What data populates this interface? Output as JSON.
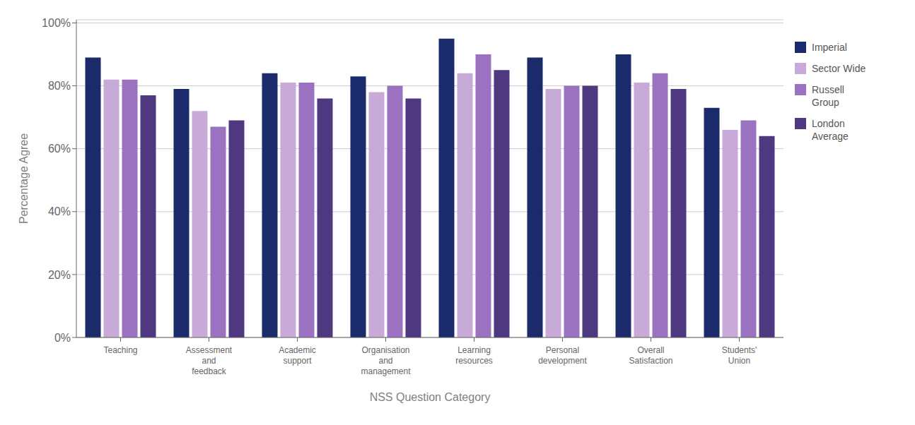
{
  "chart_data": {
    "type": "bar",
    "categories": [
      "Teaching",
      "Assessment\nand\nfeedback",
      "Academic\nsupport",
      "Organisation\nand\nmanagement",
      "Learning\nresources",
      "Personal\ndevelopment",
      "Overall\nSatisfaction",
      "Students'\nUnion"
    ],
    "series": [
      {
        "name": "Imperial",
        "color": "#1b2a6b",
        "values": [
          89,
          79,
          84,
          83,
          95,
          89,
          90,
          73
        ]
      },
      {
        "name": "Sector Wide",
        "color": "#c8aad8",
        "values": [
          82,
          72,
          81,
          78,
          84,
          79,
          81,
          66
        ]
      },
      {
        "name": "Russell\nGroup",
        "color": "#9b72c0",
        "values": [
          82,
          67,
          81,
          80,
          90,
          80,
          84,
          69
        ]
      },
      {
        "name": "London\nAverage",
        "color": "#4e3880",
        "values": [
          77,
          69,
          76,
          76,
          85,
          80,
          79,
          64
        ]
      }
    ],
    "ylabel": "Percentage Agree",
    "xlabel": "NSS Question Category",
    "ylim": [
      0,
      101
    ],
    "yticks": [
      {
        "value": 0,
        "label": "0%"
      },
      {
        "value": 20,
        "label": "20%"
      },
      {
        "value": 40,
        "label": "40%"
      },
      {
        "value": 60,
        "label": "60%"
      },
      {
        "value": 80,
        "label": "80%"
      },
      {
        "value": 100,
        "label": "100%"
      }
    ],
    "grid": true,
    "legend": "right"
  }
}
